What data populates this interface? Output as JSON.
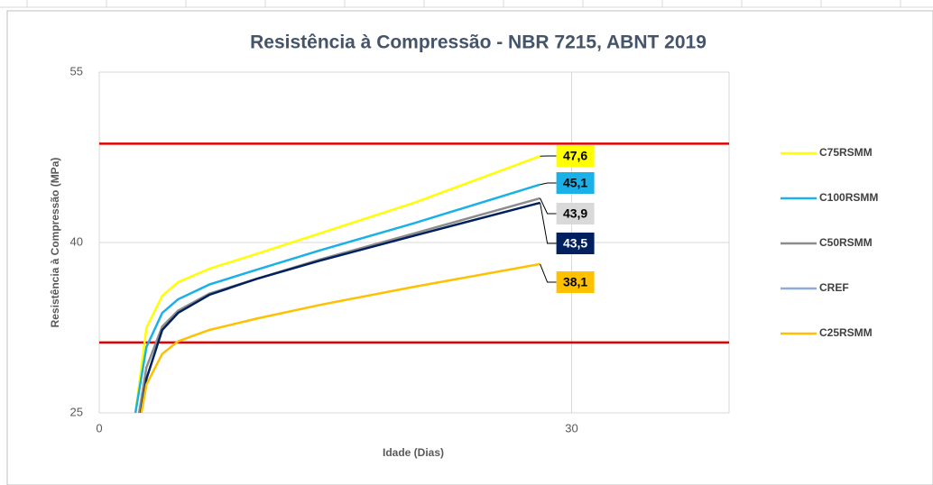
{
  "chart_data": {
    "type": "line",
    "title": "Resistência à Compressão  - NBR 7215, ABNT 2019",
    "xlabel": "Idade (Dias)",
    "ylabel": "Resistência à Compressão (MPa)",
    "x": [
      2.3,
      3,
      4,
      5,
      7,
      10,
      14,
      20,
      28
    ],
    "series": [
      {
        "name": "C75RSMM",
        "color": "#ffff00",
        "values": [
          25,
          32.5,
          35.3,
          36.5,
          37.7,
          39.0,
          40.8,
          43.5,
          47.6
        ],
        "value_labels": [
          null,
          null,
          null,
          null,
          null,
          null,
          null,
          null,
          "47,6"
        ]
      },
      {
        "name": "C100RSMM",
        "color": "#1ab0e8",
        "values": [
          25,
          30.8,
          33.8,
          35.0,
          36.3,
          37.6,
          39.3,
          41.7,
          45.1
        ],
        "value_labels": [
          null,
          null,
          null,
          null,
          null,
          null,
          null,
          null,
          "45,1"
        ]
      },
      {
        "name": "C50RSMM",
        "color": "#8c8c8c",
        "values": [
          23,
          29,
          32.6,
          34.0,
          35.5,
          36.8,
          38.5,
          40.8,
          43.9
        ],
        "value_labels": [
          null,
          null,
          null,
          null,
          null,
          null,
          null,
          null,
          "43,9"
        ]
      },
      {
        "name": "CREF",
        "color": "#002060",
        "values": [
          22,
          28,
          32.3,
          33.8,
          35.4,
          36.8,
          38.4,
          40.6,
          43.5
        ],
        "value_labels": [
          null,
          null,
          null,
          null,
          null,
          null,
          null,
          null,
          "43,5"
        ]
      },
      {
        "name": "C25RSMM",
        "color": "#ffc000",
        "values": [
          22,
          27.5,
          30.2,
          31.3,
          32.3,
          33.3,
          34.5,
          36.1,
          38.1
        ],
        "value_labels": [
          null,
          null,
          null,
          null,
          null,
          null,
          null,
          null,
          "38,1"
        ]
      }
    ],
    "reference_lines": [
      {
        "value": 48.7,
        "color": "#e00000"
      },
      {
        "value": 31.2,
        "color": "#e00000"
      }
    ],
    "xlim": [
      0,
      40
    ],
    "xticks": [
      0,
      30
    ],
    "ylim": [
      25,
      55
    ],
    "yticks": [
      25,
      40,
      55
    ],
    "grid": true,
    "legend": "right"
  }
}
